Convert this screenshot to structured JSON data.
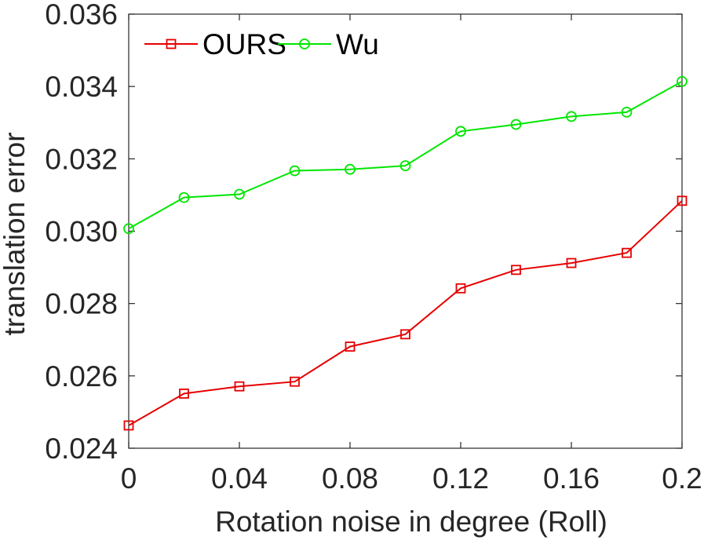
{
  "chart_data": {
    "type": "line",
    "xlabel": "Rotation noise in degree (Roll)",
    "ylabel": "translation error",
    "xlim": [
      0,
      0.2
    ],
    "ylim": [
      0.024,
      0.036
    ],
    "x_ticks": [
      "0",
      "0.04",
      "0.08",
      "0.12",
      "0.16",
      "0.2"
    ],
    "x_tick_values": [
      0,
      0.04,
      0.08,
      0.12,
      0.16,
      0.2
    ],
    "y_ticks": [
      "0.024",
      "0.026",
      "0.028",
      "0.030",
      "0.032",
      "0.034",
      "0.036"
    ],
    "y_tick_values": [
      0.024,
      0.026,
      0.028,
      0.03,
      0.032,
      0.034,
      0.036
    ],
    "x": [
      0,
      0.02,
      0.04,
      0.06,
      0.08,
      0.1,
      0.12,
      0.14,
      0.16,
      0.18,
      0.2
    ],
    "series": [
      {
        "name": "OURS",
        "color": "#e60000",
        "marker": "square",
        "values": [
          0.02463,
          0.02551,
          0.02571,
          0.02584,
          0.02681,
          0.02715,
          0.02842,
          0.02893,
          0.02912,
          0.0294,
          0.03084
        ]
      },
      {
        "name": "Wu",
        "color": "#00e600",
        "marker": "circle",
        "values": [
          0.03007,
          0.03093,
          0.03102,
          0.03167,
          0.03171,
          0.03181,
          0.03276,
          0.03295,
          0.03317,
          0.03329,
          0.03414
        ]
      }
    ],
    "grid": false,
    "legend_position": "top-left"
  }
}
